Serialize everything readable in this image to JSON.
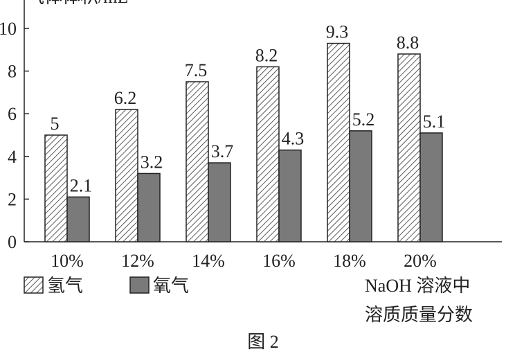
{
  "chart_data": {
    "type": "bar",
    "y_label": "气体体积/mL",
    "categories": [
      "10%",
      "12%",
      "14%",
      "16%",
      "18%",
      "20%"
    ],
    "series": [
      {
        "name": "氢气",
        "color": "#ffffff",
        "pattern": "hatch",
        "values": [
          5,
          6.2,
          7.5,
          8.2,
          9.3,
          8.8
        ]
      },
      {
        "name": "氧气",
        "color": "#7a7a7a",
        "pattern": "solid",
        "values": [
          2.1,
          3.2,
          3.7,
          4.3,
          5.2,
          5.1
        ]
      }
    ],
    "ylim": [
      0,
      10
    ],
    "yticks": [
      0,
      2,
      4,
      6,
      8,
      10
    ],
    "x_label": [
      "NaOH 溶液中",
      "溶质质量分数"
    ],
    "caption": "图 2"
  }
}
